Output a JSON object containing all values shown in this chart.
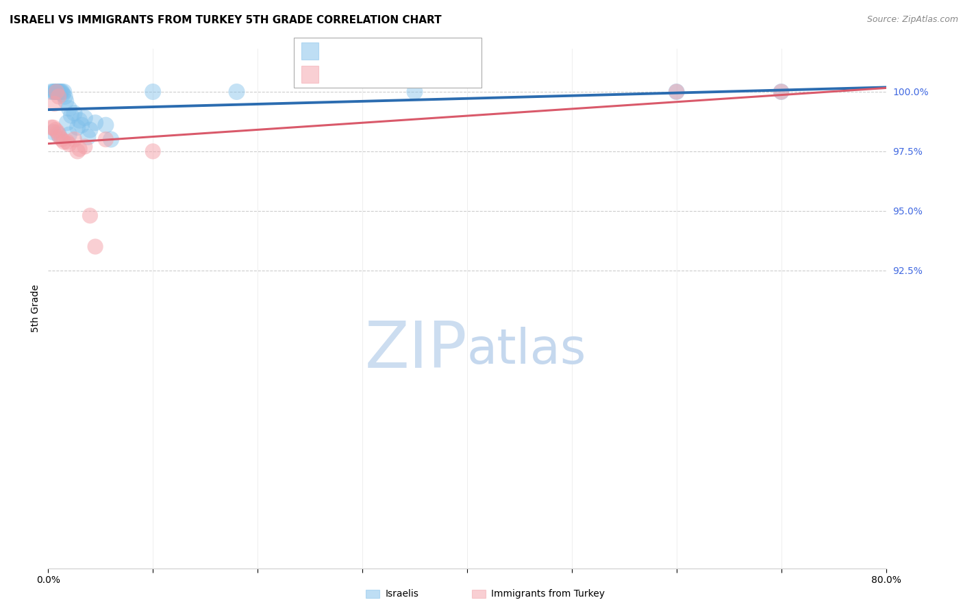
{
  "title": "ISRAELI VS IMMIGRANTS FROM TURKEY 5TH GRADE CORRELATION CHART",
  "source": "Source: ZipAtlas.com",
  "ylabel": "5th Grade",
  "israeli_color": "#7fbfea",
  "turkey_color": "#f4a0a8",
  "israeli_line_color": "#2b6cb0",
  "turkey_line_color": "#d9596a",
  "watermark_zip_color": "#ccddf0",
  "watermark_atlas_color": "#c5d8ee",
  "background_color": "#ffffff",
  "title_fontsize": 11,
  "source_fontsize": 9,
  "legend_fontsize": 13,
  "tick_label_color": "#4169E1",
  "bottom_legend_label_color": "#000000",
  "xlim": [
    0,
    80
  ],
  "ylim": [
    80.0,
    101.8
  ],
  "yticks": [
    92.5,
    95.0,
    97.5,
    100.0
  ],
  "ytick_labels": [
    "92.5%",
    "95.0%",
    "97.5%",
    "100.0%"
  ],
  "xtick_positions": [
    0,
    10,
    20,
    30,
    40,
    50,
    60,
    70,
    80
  ],
  "xtick_labels_show": [
    "0.0%",
    "",
    "",
    "",
    "",
    "",
    "",
    "",
    "80.0%"
  ],
  "israeli_x": [
    0.3,
    0.5,
    0.6,
    0.7,
    0.8,
    0.9,
    1.0,
    1.1,
    1.2,
    1.3,
    1.5,
    1.7,
    2.0,
    2.2,
    2.5,
    3.0,
    3.5,
    4.5,
    5.5,
    1.4,
    1.6,
    1.8,
    2.8,
    3.2,
    4.0,
    1.0,
    2.0,
    10.0,
    18.0,
    35.0,
    60.0,
    70.0,
    0.5,
    3.8,
    6.0
  ],
  "israeli_y": [
    100.0,
    100.0,
    100.0,
    100.0,
    100.0,
    100.0,
    100.0,
    100.0,
    100.0,
    100.0,
    100.0,
    99.6,
    99.3,
    99.0,
    99.1,
    98.8,
    98.9,
    98.7,
    98.6,
    99.9,
    99.8,
    98.7,
    98.5,
    98.6,
    98.4,
    98.2,
    98.2,
    100.0,
    100.0,
    100.0,
    100.0,
    100.0,
    98.3,
    98.1,
    98.0
  ],
  "turkey_x": [
    0.3,
    0.5,
    0.7,
    0.9,
    1.1,
    1.3,
    0.8,
    1.0,
    1.5,
    2.0,
    2.5,
    3.5,
    0.6,
    1.8,
    2.8,
    5.5,
    10.0,
    60.0,
    70.0,
    3.0,
    4.0,
    4.5
  ],
  "turkey_y": [
    98.5,
    98.5,
    98.4,
    98.3,
    98.1,
    98.0,
    100.0,
    99.8,
    97.9,
    97.8,
    98.0,
    97.7,
    99.5,
    97.9,
    97.5,
    98.0,
    97.5,
    100.0,
    100.0,
    97.6,
    94.8,
    93.5
  ]
}
